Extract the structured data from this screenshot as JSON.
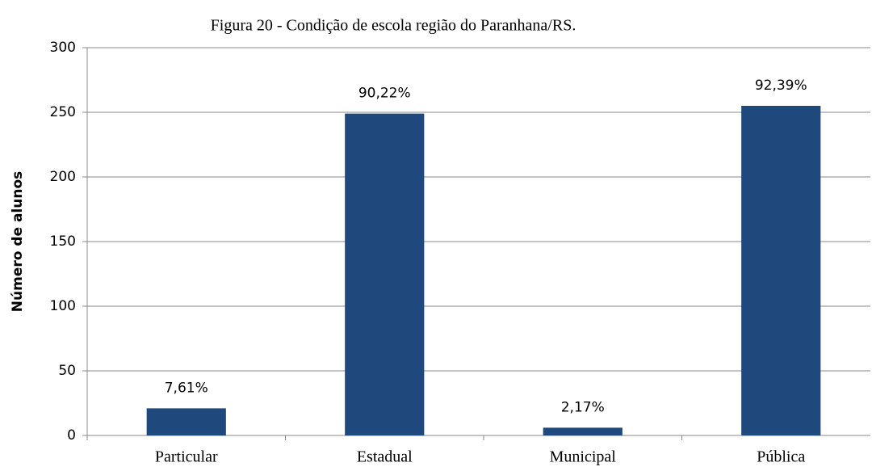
{
  "chart_data": {
    "type": "bar",
    "title": "Figura 20 - Condição de escola região do Paranhana/RS.",
    "ylabel": "Número de alunos",
    "categories": [
      "Particular",
      "Estadual",
      "Municipal",
      "Pública"
    ],
    "values": [
      21,
      249,
      6,
      255
    ],
    "annotations": [
      "7,61%",
      "90,22%",
      "2,17%",
      "92,39%"
    ],
    "color": "#1f497d",
    "ylim": [
      0,
      300
    ],
    "yticks": [
      0,
      50,
      100,
      150,
      200,
      250,
      300
    ],
    "grid": true
  }
}
